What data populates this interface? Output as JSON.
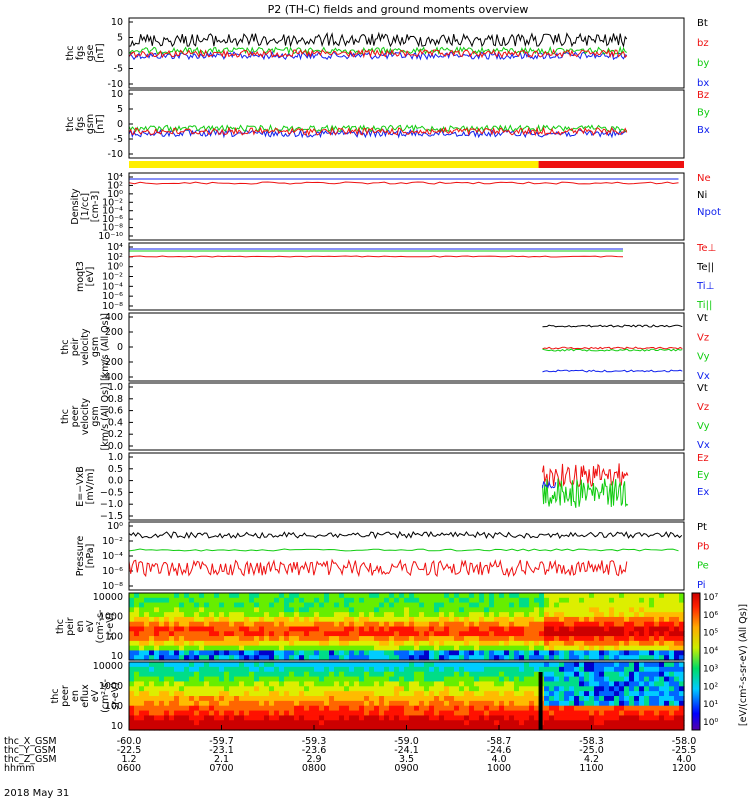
{
  "title": "P2 (TH-C) fields and ground moments overview",
  "date_label": "2018 May 31",
  "colors": {
    "black": "#000000",
    "red": "#ee1111",
    "green": "#11cc11",
    "blue": "#1122ee",
    "yellow": "#ffee00"
  },
  "chart_data": [
    {
      "id": "fgs_gse",
      "type": "line",
      "ylabel": [
        "thc",
        "fgs",
        "gse",
        "[nT]"
      ],
      "ylim": [
        -10,
        10
      ],
      "yticks": [
        10,
        5,
        0,
        -5,
        -10
      ],
      "legend": [
        {
          "name": "Bt",
          "color": "black"
        },
        {
          "name": "bz",
          "color": "red"
        },
        {
          "name": "by",
          "color": "green"
        },
        {
          "name": "bx",
          "color": "blue"
        }
      ]
    },
    {
      "id": "fgs_gsm",
      "type": "line",
      "ylabel": [
        "thc",
        "fgs",
        "gsm",
        "[nT]"
      ],
      "ylim": [
        -15,
        10
      ],
      "yticks": [
        10,
        5,
        0,
        -5,
        -10
      ],
      "legend": [
        {
          "name": "Bz",
          "color": "red"
        },
        {
          "name": "By",
          "color": "green"
        },
        {
          "name": "Bx",
          "color": "blue"
        }
      ]
    },
    {
      "id": "density",
      "type": "line",
      "log": true,
      "ylabel": [
        "Density",
        "[1/cc]",
        "[cm-3]"
      ],
      "yticks": [
        "10⁴",
        "10²",
        "10⁰",
        "10⁻²",
        "10⁻⁴",
        "10⁻⁶",
        "10⁻⁸",
        "10⁻¹⁰"
      ],
      "legend": [
        {
          "name": "Ne",
          "color": "red"
        },
        {
          "name": "Ni",
          "color": "black"
        },
        {
          "name": "Npot",
          "color": "blue"
        }
      ]
    },
    {
      "id": "temperature",
      "type": "line",
      "log": true,
      "ylabel": [
        "moqt3",
        "[eV]"
      ],
      "yticks": [
        "10⁴",
        "10²",
        "10⁰",
        "10⁻²",
        "10⁻⁴",
        "10⁻⁶",
        "10⁻⁸"
      ],
      "legend": [
        {
          "name": "Te⊥",
          "color": "red"
        },
        {
          "name": "Te||",
          "color": "black"
        },
        {
          "name": "Ti⊥",
          "color": "blue"
        },
        {
          "name": "Ti||",
          "color": "green"
        }
      ]
    },
    {
      "id": "peir_velocity",
      "type": "line",
      "ylabel": [
        "thc",
        "peir",
        "velocity",
        "gsm",
        "[km/s (All Qs)]"
      ],
      "ylim": [
        -400,
        400
      ],
      "yticks": [
        400,
        200,
        0,
        -200,
        -400
      ],
      "legend": [
        {
          "name": "Vt",
          "color": "black"
        },
        {
          "name": "Vz",
          "color": "red"
        },
        {
          "name": "Vy",
          "color": "green"
        },
        {
          "name": "Vx",
          "color": "blue"
        }
      ]
    },
    {
      "id": "peer_velocity",
      "type": "line",
      "ylabel": [
        "thc",
        "peer",
        "velocity",
        "gsm",
        "[km/s (All Qs)]"
      ],
      "ylim": [
        0,
        1
      ],
      "yticks": [
        "1.0",
        "0.8",
        "0.6",
        "0.4",
        "0.2",
        "0.0"
      ],
      "legend": [
        {
          "name": "Vt",
          "color": "black"
        },
        {
          "name": "Vz",
          "color": "red"
        },
        {
          "name": "Vy",
          "color": "green"
        },
        {
          "name": "Vx",
          "color": "blue"
        }
      ]
    },
    {
      "id": "efield",
      "type": "line",
      "ylabel": [
        "E=−VxB",
        "[mV/m]"
      ],
      "ylim": [
        -1.5,
        1
      ],
      "yticks": [
        "1.0",
        "0.5",
        "0.0",
        "−0.5",
        "−1.0",
        "−1.5"
      ],
      "legend": [
        {
          "name": "Ez",
          "color": "red"
        },
        {
          "name": "Ey",
          "color": "green"
        },
        {
          "name": "Ex",
          "color": "blue"
        }
      ]
    },
    {
      "id": "pressure",
      "type": "line",
      "log": true,
      "ylabel": [
        "Pressure",
        "[nPa]"
      ],
      "yticks": [
        "10⁰",
        "10⁻²",
        "10⁻⁴",
        "10⁻⁶",
        "10⁻⁸"
      ],
      "legend": [
        {
          "name": "Pt",
          "color": "black"
        },
        {
          "name": "Pb",
          "color": "red"
        },
        {
          "name": "Pe",
          "color": "green"
        },
        {
          "name": "Pi",
          "color": "blue"
        }
      ]
    },
    {
      "id": "peir_spec",
      "type": "heatmap",
      "ylabel": [
        "thc",
        "peir",
        "en",
        "eV",
        "(cm²-s-",
        "sr-eV)"
      ],
      "yticks": [
        "10000",
        "1000",
        "100",
        "10"
      ]
    },
    {
      "id": "peer_spec",
      "type": "heatmap",
      "ylabel": [
        "thc",
        "peer",
        "en",
        "eflux",
        "eV",
        "(cm²-s-",
        "sr-eV)"
      ],
      "yticks": [
        "10000",
        "1000",
        "100",
        "10"
      ]
    }
  ],
  "colorbar": {
    "ticks": [
      "10⁷",
      "10⁶",
      "10⁵",
      "10⁴",
      "10³",
      "10²",
      "10¹",
      "10⁰"
    ],
    "label": "[eV/(cm²-s-sr-eV) (All Qs)]"
  },
  "mode_bar": {
    "yellow_until": "1030",
    "red_from": "1030"
  },
  "xaxis": {
    "row_labels": [
      "thc_X_GSM",
      "thc_Y_GSM",
      "thc_Z_GSM",
      "hhmm"
    ],
    "columns": [
      [
        "-60.0",
        "-22.5",
        "1.2",
        "0600"
      ],
      [
        "-59.7",
        "-23.1",
        "2.1",
        "0700"
      ],
      [
        "-59.3",
        "-23.6",
        "2.9",
        "0800"
      ],
      [
        "-59.0",
        "-24.1",
        "3.5",
        "0900"
      ],
      [
        "-58.7",
        "-24.6",
        "4.0",
        "1000"
      ],
      [
        "-58.3",
        "-25.0",
        "4.2",
        "1100"
      ],
      [
        "-58.0",
        "-25.5",
        "4.0",
        "1200"
      ]
    ]
  }
}
